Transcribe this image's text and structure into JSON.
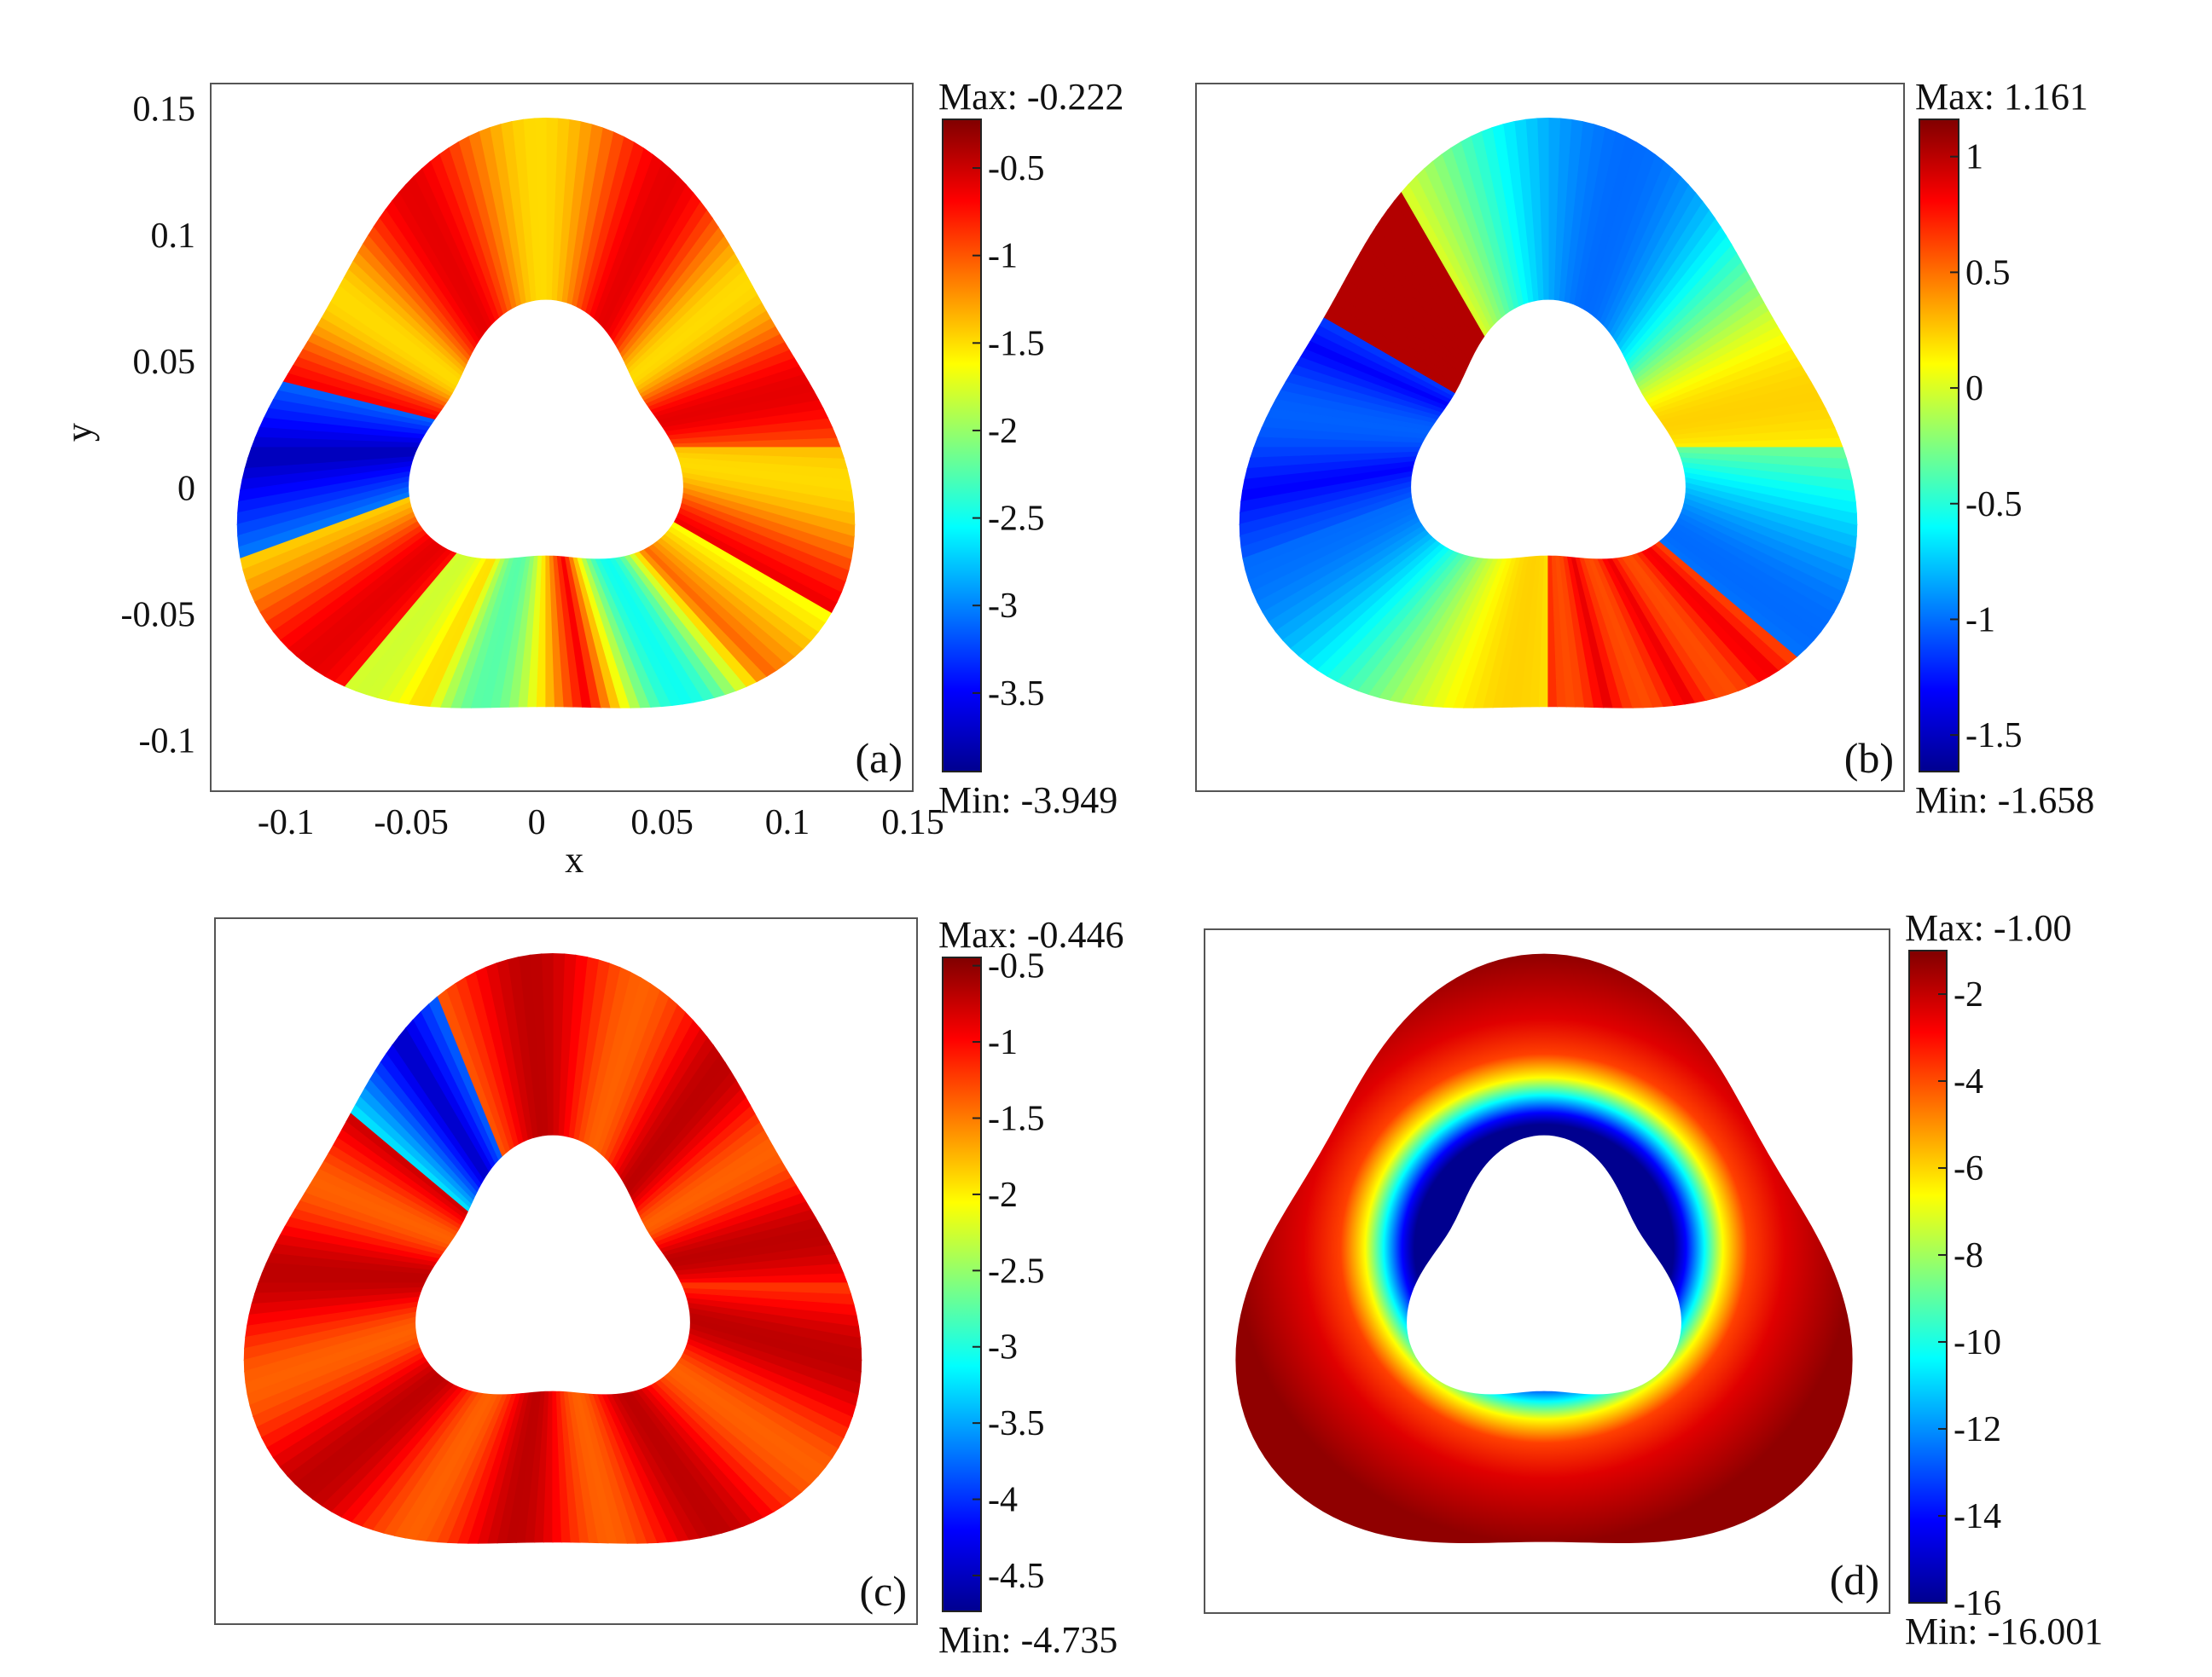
{
  "figure": {
    "panels": [
      {
        "id": "a",
        "label": "(a)",
        "colorbar": {
          "max_label": "Max: -0.222",
          "min_label": "Min: -3.949",
          "max": -0.222,
          "min": -3.949,
          "ticks": [
            -0.5,
            -1,
            -1.5,
            -2,
            -2.5,
            -3,
            -3.5
          ],
          "tick_labels": [
            "-0.5",
            "-1",
            "-1.5",
            "-2",
            "-2.5",
            "-3",
            "-3.5"
          ]
        },
        "axes": {
          "xlabel": "x",
          "ylabel": "y",
          "xticks": [
            "-0.1",
            "-0.05",
            "0",
            "0.05",
            "0.1",
            "0.15"
          ],
          "yticks": [
            "0.15",
            "0.1",
            "0.05",
            "0",
            "-0.05",
            "-0.1"
          ]
        }
      },
      {
        "id": "b",
        "label": "(b)",
        "colorbar": {
          "max_label": "Max: 1.161",
          "min_label": "Min: -1.658",
          "max": 1.161,
          "min": -1.658,
          "ticks": [
            1,
            0.5,
            0,
            -0.5,
            -1,
            -1.5
          ],
          "tick_labels": [
            "1",
            "0.5",
            "0",
            "-0.5",
            "-1",
            "-1.5"
          ]
        }
      },
      {
        "id": "c",
        "label": "(c)",
        "colorbar": {
          "max_label": "Max: -0.446",
          "min_label": "Min: -4.735",
          "max": -0.446,
          "min": -4.735,
          "ticks": [
            -0.5,
            -1,
            -1.5,
            -2,
            -2.5,
            -3,
            -3.5,
            -4,
            -4.5
          ],
          "tick_labels": [
            "-0.5",
            "-1",
            "-1.5",
            "-2",
            "-2.5",
            "-3",
            "-3.5",
            "-4",
            "-4.5"
          ]
        }
      },
      {
        "id": "d",
        "label": "(d)",
        "colorbar": {
          "max_label": "Max: -1.00",
          "min_label": "Min: -16.001",
          "max": -1.0,
          "min": -16.001,
          "ticks": [
            -2,
            -4,
            -6,
            -8,
            -10,
            -12,
            -14,
            -16
          ],
          "tick_labels": [
            "-2",
            "-4",
            "-6",
            "-8",
            "-10",
            "-12",
            "-14",
            "-16"
          ]
        }
      }
    ],
    "colormap": [
      "#00008f",
      "#0000ff",
      "#00ffff",
      "#ffff00",
      "#ff0000",
      "#800000"
    ]
  },
  "chart_data": [
    {
      "type": "heatmap",
      "panel": "(a)",
      "x_range": [
        -0.13,
        0.15
      ],
      "y_range": [
        -0.12,
        0.16
      ],
      "xlabel": "x",
      "ylabel": "y",
      "value_range": [
        -3.949,
        -0.222
      ]
    },
    {
      "type": "heatmap",
      "panel": "(b)",
      "value_range": [
        -1.658,
        1.161
      ]
    },
    {
      "type": "heatmap",
      "panel": "(c)",
      "value_range": [
        -4.735,
        -0.446
      ]
    },
    {
      "type": "heatmap",
      "panel": "(d)",
      "value_range": [
        -16.001,
        -1.0
      ]
    }
  ]
}
